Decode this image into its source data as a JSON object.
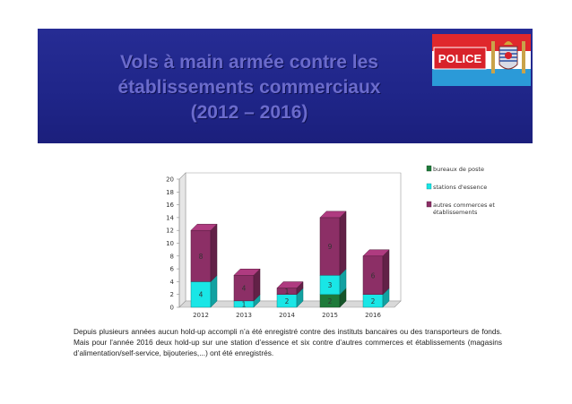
{
  "slide": {
    "title_lines": [
      "Vols à main armée contre les",
      "établissements commerciaux",
      "(2012 – 2016)"
    ],
    "logo_text": "POLICE",
    "caption": "Depuis plusieurs années aucun hold-up accompli n’a été enregistré contre des instituts bancaires ou des transporteurs de fonds. Mais pour l’année 2016  deux hold-up sur une station d’essence et six contre d’autres commerces et établissements (magasins d’alimentation/self-service, bijouteries,...) ont été enregistrés."
  },
  "colors": {
    "banner": "#232a8e",
    "bureaux": "#1e7a3a",
    "stations": "#19e6e6",
    "autres": "#8c2f66"
  },
  "chart_data": {
    "type": "bar",
    "stacked": true,
    "three_d": true,
    "categories": [
      "2012",
      "2013",
      "2014",
      "2015",
      "2016"
    ],
    "series": [
      {
        "name": "bureaux de poste",
        "values": [
          0,
          0,
          0,
          2,
          0
        ]
      },
      {
        "name": "stations d'essence",
        "values": [
          4,
          1,
          2,
          3,
          2
        ]
      },
      {
        "name": "autres commerces et établissements",
        "values": [
          8,
          4,
          1,
          9,
          6
        ]
      }
    ],
    "ylim": [
      0,
      20
    ],
    "yticks": [
      0,
      2,
      4,
      6,
      8,
      10,
      12,
      14,
      16,
      18,
      20
    ],
    "grid": false,
    "legend_position": "top-right"
  }
}
